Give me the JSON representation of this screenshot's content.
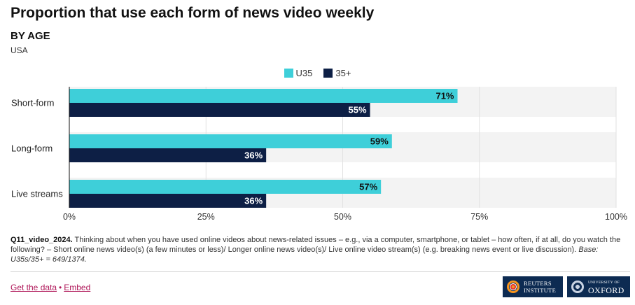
{
  "header": {
    "title": "Proportion that use each form of news video weekly",
    "subtitle": "BY AGE",
    "region": "USA"
  },
  "chart_data": {
    "type": "bar",
    "orientation": "horizontal",
    "categories": [
      "Short-form",
      "Long-form",
      "Live streams"
    ],
    "series": [
      {
        "name": "U35",
        "values": [
          71,
          59,
          57
        ],
        "color": "#3ecfd9"
      },
      {
        "name": "35+",
        "values": [
          55,
          36,
          36
        ],
        "color": "#0d1f45"
      }
    ],
    "data_labels": [
      [
        "71%",
        "59%",
        "57%"
      ],
      [
        "55%",
        "36%",
        "36%"
      ]
    ],
    "xlim": [
      0,
      100
    ],
    "x_ticks": [
      0,
      25,
      50,
      75,
      100
    ],
    "x_tick_labels": [
      "0%",
      "25%",
      "50%",
      "75%",
      "100%"
    ],
    "legend_position": "top-center",
    "grid": true
  },
  "footnote": {
    "code": "Q11_video_2024.",
    "text": " Thinking about when you have used online videos about news-related issues – e.g., via a computer, smartphone, or tablet – how often, if at all, do you watch the following? – Short online news video(s) (a few minutes or less)/ Longer online news video(s)/ Live online video stream(s) (e.g. breaking news event or live discussion). ",
    "base": "Base: U35s/35+ = 649/1374."
  },
  "links": {
    "get_data": "Get the data",
    "separator": "•",
    "embed": "Embed"
  },
  "logos": {
    "reuters_line1": "REUTERS",
    "reuters_line2": "INSTITUTE",
    "oxford_small": "UNIVERSITY OF",
    "oxford_big": "OXFORD"
  }
}
